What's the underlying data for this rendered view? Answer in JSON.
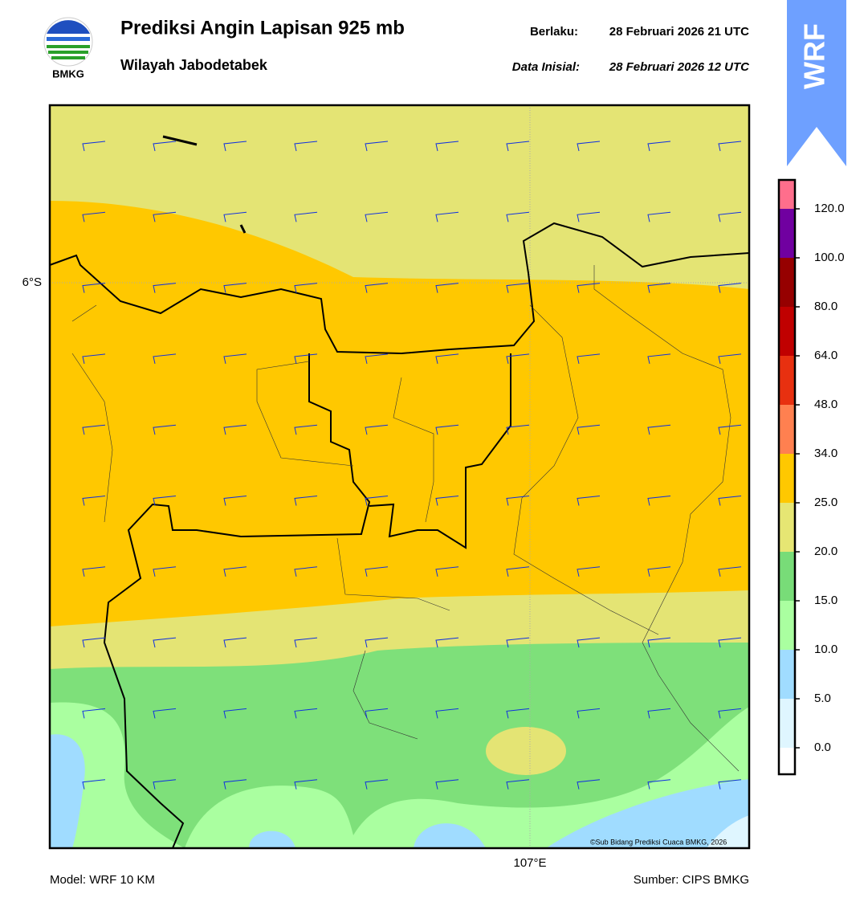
{
  "header": {
    "logo": "BMKG",
    "title": "Prediksi Angin Lapisan 925 mb",
    "subtitle": "Wilayah Jabodetabek",
    "valid_label": "Berlaku:",
    "valid": "28 Februari 2026 21 UTC",
    "init_label": "Data Inisial:",
    "init": "28 Februari 2026 12 UTC",
    "badge": "WRF"
  },
  "map": {
    "lat_label": "6°S",
    "lon_label": "107°E",
    "credit": "©Sub Bidang Prediksi Cuaca BMKG, 2026"
  },
  "colorbar": {
    "ticks": [
      "0.0",
      "5.0",
      "10.0",
      "15.0",
      "20.0",
      "25.0",
      "34.0",
      "48.0",
      "64.0",
      "80.0",
      "100.0",
      "120.0"
    ],
    "colors": [
      "#ffffff",
      "#dff6ff",
      "#a0dcff",
      "#aaffa0",
      "#78dc78",
      "#e6e673",
      "#ffc800",
      "#ff8050",
      "#e83010",
      "#c00000",
      "#960000",
      "#7000a0",
      "#ff6e8c"
    ]
  },
  "footer": {
    "model": "Model: WRF 10 KM",
    "source": "Sumber: CIPS BMKG"
  }
}
